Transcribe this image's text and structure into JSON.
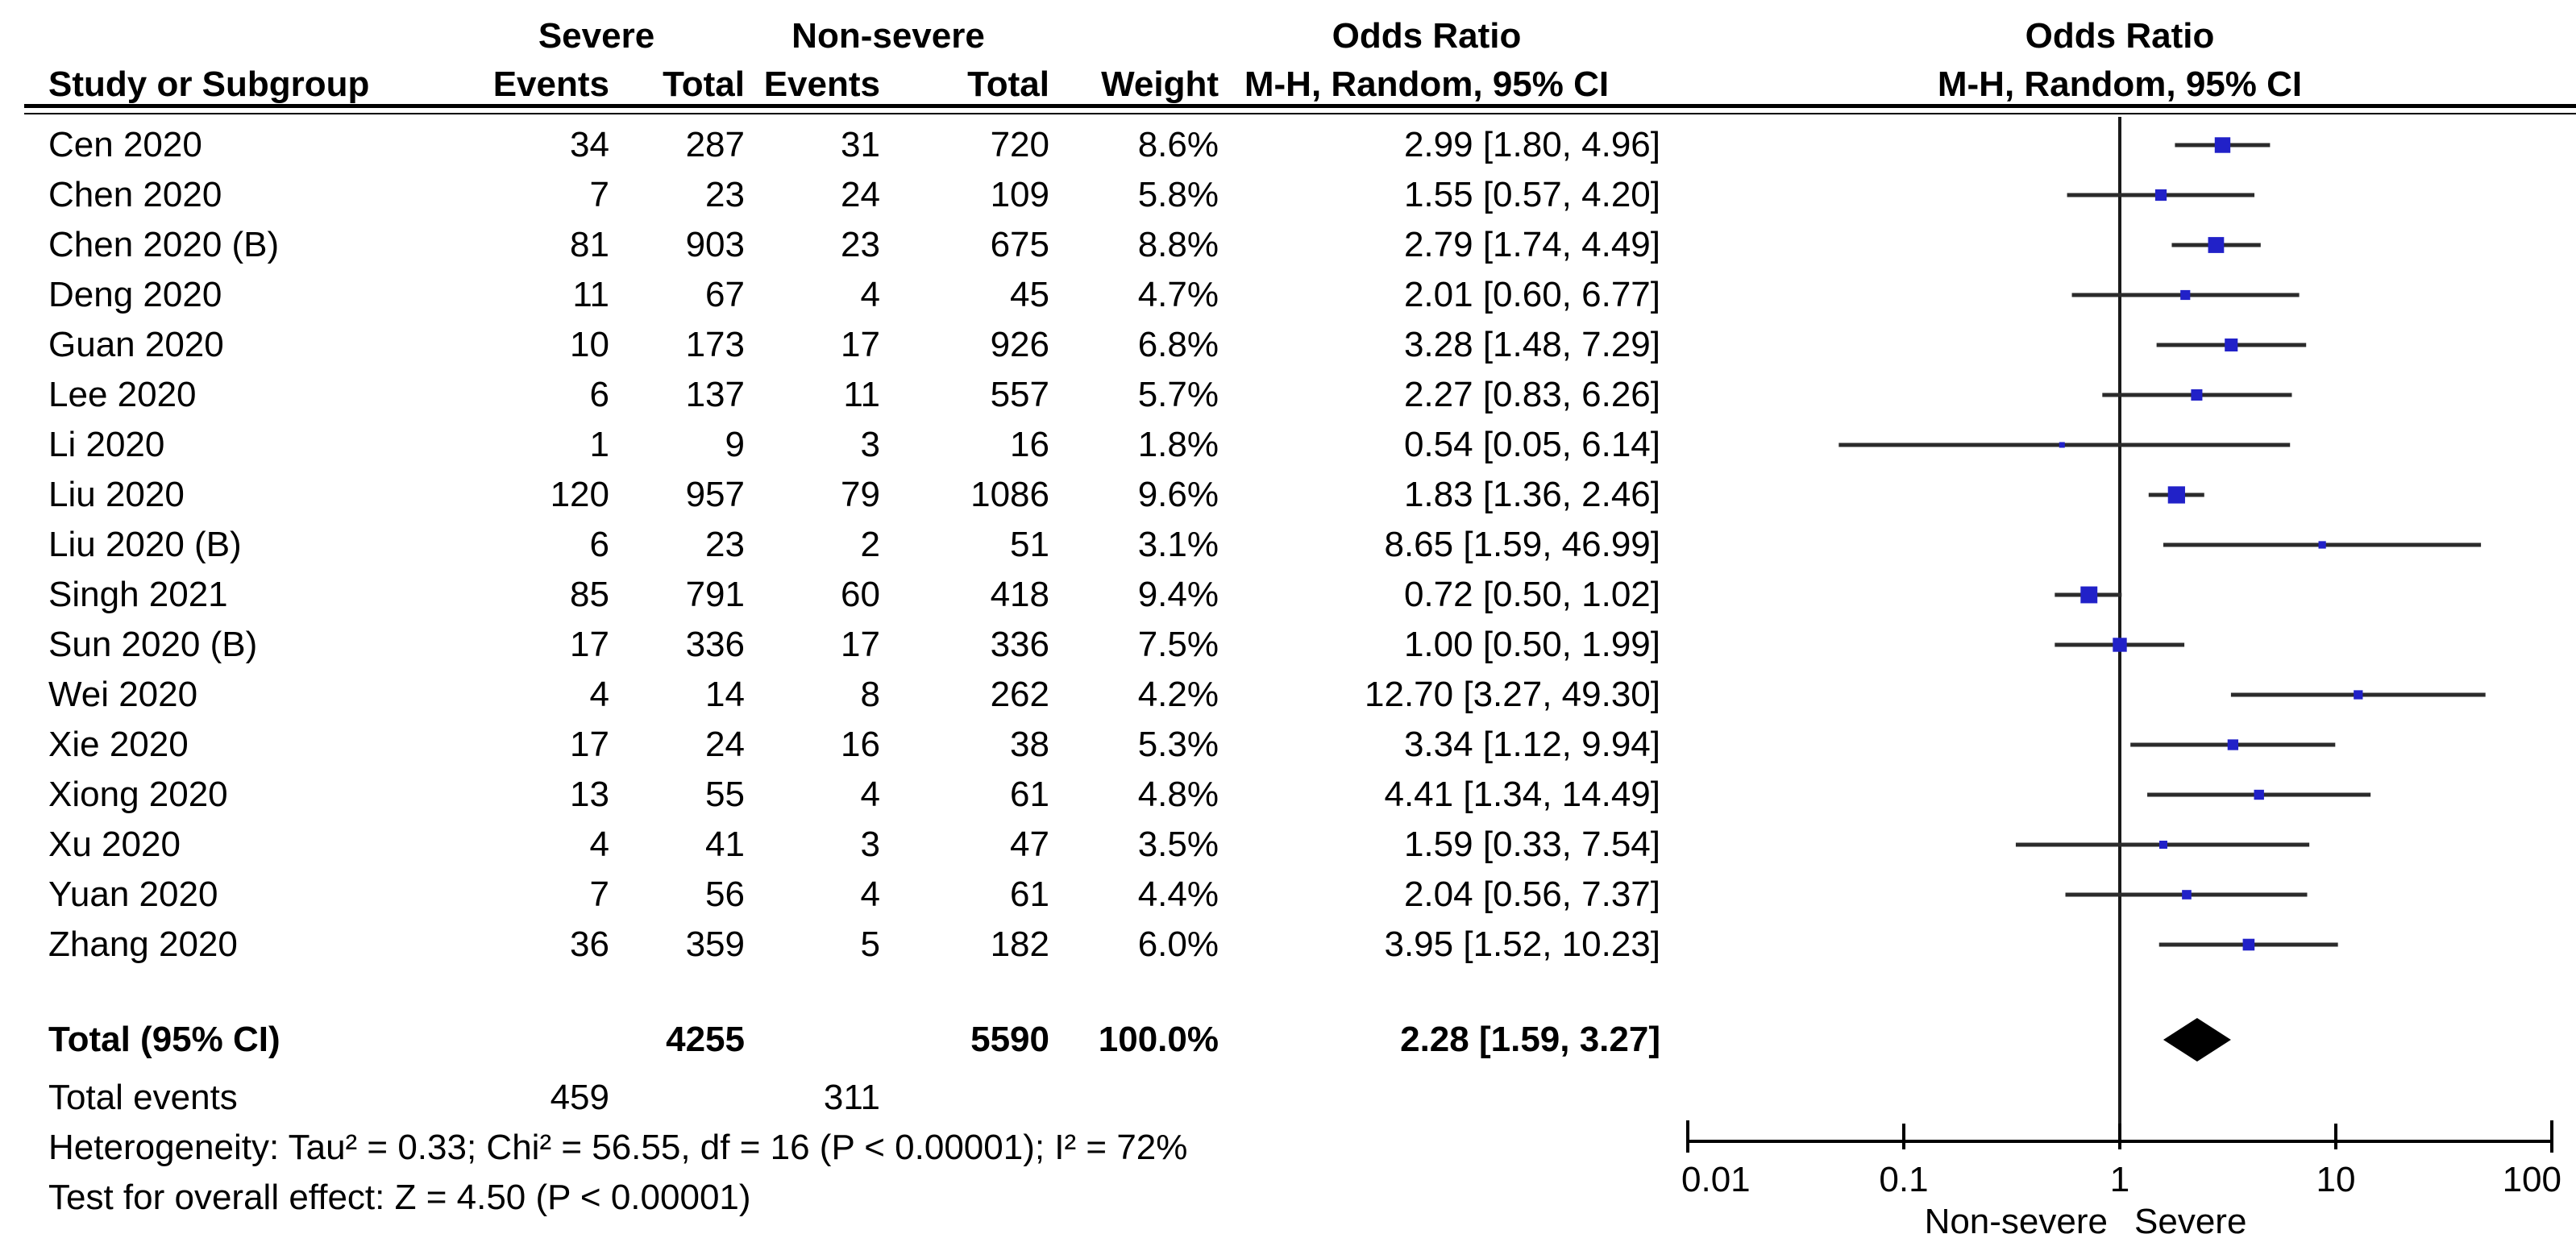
{
  "colors": {
    "marker_blue": "#2121C8",
    "ci_line": "#2b2b2b",
    "null_line": "#1a1a1a",
    "axis": "#000000",
    "diamond": "#000000",
    "text": "#000000"
  },
  "header": {
    "group_severe": "Severe",
    "group_nonsevere": "Non-severe",
    "study": "Study or Subgroup",
    "severe_events": "Events",
    "severe_total": "Total",
    "nonsevere_events": "Events",
    "nonsevere_total": "Total",
    "weight": "Weight",
    "or_title": "Odds Ratio",
    "or_subtitle": "M-H, Random, 95% CI",
    "plot_or_title": "Odds Ratio",
    "plot_or_subtitle": "M-H, Random, 95% CI"
  },
  "chart_data": {
    "type": "forest",
    "effect_measure": "Odds Ratio, M-H Random effects, 95% CI",
    "x_scale": "log",
    "x_range": [
      0.01,
      100
    ],
    "x_ticks": [
      {
        "value": 0.01,
        "label": "0.01"
      },
      {
        "value": 0.1,
        "label": "0.1"
      },
      {
        "value": 1,
        "label": "1"
      },
      {
        "value": 10,
        "label": "10"
      },
      {
        "value": 100,
        "label": "100"
      }
    ],
    "x_axis_left_label": "Non-severe",
    "x_axis_right_label": "Severe",
    "studies": [
      {
        "name": "Cen 2020",
        "severe_events": 34,
        "severe_total": 287,
        "nonsevere_events": 31,
        "nonsevere_total": 720,
        "weight": 8.6,
        "weight_label": "8.6%",
        "or": 2.99,
        "ci_low": 1.8,
        "ci_high": 4.96,
        "or_label": "2.99 [1.80, 4.96]"
      },
      {
        "name": "Chen 2020",
        "severe_events": 7,
        "severe_total": 23,
        "nonsevere_events": 24,
        "nonsevere_total": 109,
        "weight": 5.8,
        "weight_label": "5.8%",
        "or": 1.55,
        "ci_low": 0.57,
        "ci_high": 4.2,
        "or_label": "1.55 [0.57, 4.20]"
      },
      {
        "name": "Chen 2020 (B)",
        "severe_events": 81,
        "severe_total": 903,
        "nonsevere_events": 23,
        "nonsevere_total": 675,
        "weight": 8.8,
        "weight_label": "8.8%",
        "or": 2.79,
        "ci_low": 1.74,
        "ci_high": 4.49,
        "or_label": "2.79 [1.74, 4.49]"
      },
      {
        "name": "Deng 2020",
        "severe_events": 11,
        "severe_total": 67,
        "nonsevere_events": 4,
        "nonsevere_total": 45,
        "weight": 4.7,
        "weight_label": "4.7%",
        "or": 2.01,
        "ci_low": 0.6,
        "ci_high": 6.77,
        "or_label": "2.01 [0.60, 6.77]"
      },
      {
        "name": "Guan 2020",
        "severe_events": 10,
        "severe_total": 173,
        "nonsevere_events": 17,
        "nonsevere_total": 926,
        "weight": 6.8,
        "weight_label": "6.8%",
        "or": 3.28,
        "ci_low": 1.48,
        "ci_high": 7.29,
        "or_label": "3.28 [1.48, 7.29]"
      },
      {
        "name": "Lee 2020",
        "severe_events": 6,
        "severe_total": 137,
        "nonsevere_events": 11,
        "nonsevere_total": 557,
        "weight": 5.7,
        "weight_label": "5.7%",
        "or": 2.27,
        "ci_low": 0.83,
        "ci_high": 6.26,
        "or_label": "2.27 [0.83, 6.26]"
      },
      {
        "name": "Li 2020",
        "severe_events": 1,
        "severe_total": 9,
        "nonsevere_events": 3,
        "nonsevere_total": 16,
        "weight": 1.8,
        "weight_label": "1.8%",
        "or": 0.54,
        "ci_low": 0.05,
        "ci_high": 6.14,
        "or_label": "0.54 [0.05, 6.14]"
      },
      {
        "name": "Liu 2020",
        "severe_events": 120,
        "severe_total": 957,
        "nonsevere_events": 79,
        "nonsevere_total": 1086,
        "weight": 9.6,
        "weight_label": "9.6%",
        "or": 1.83,
        "ci_low": 1.36,
        "ci_high": 2.46,
        "or_label": "1.83 [1.36, 2.46]"
      },
      {
        "name": "Liu 2020 (B)",
        "severe_events": 6,
        "severe_total": 23,
        "nonsevere_events": 2,
        "nonsevere_total": 51,
        "weight": 3.1,
        "weight_label": "3.1%",
        "or": 8.65,
        "ci_low": 1.59,
        "ci_high": 46.99,
        "or_label": "8.65 [1.59, 46.99]"
      },
      {
        "name": "Singh 2021",
        "severe_events": 85,
        "severe_total": 791,
        "nonsevere_events": 60,
        "nonsevere_total": 418,
        "weight": 9.4,
        "weight_label": "9.4%",
        "or": 0.72,
        "ci_low": 0.5,
        "ci_high": 1.02,
        "or_label": "0.72 [0.50, 1.02]"
      },
      {
        "name": "Sun 2020 (B)",
        "severe_events": 17,
        "severe_total": 336,
        "nonsevere_events": 17,
        "nonsevere_total": 336,
        "weight": 7.5,
        "weight_label": "7.5%",
        "or": 1.0,
        "ci_low": 0.5,
        "ci_high": 1.99,
        "or_label": "1.00 [0.50, 1.99]"
      },
      {
        "name": "Wei 2020",
        "severe_events": 4,
        "severe_total": 14,
        "nonsevere_events": 8,
        "nonsevere_total": 262,
        "weight": 4.2,
        "weight_label": "4.2%",
        "or": 12.7,
        "ci_low": 3.27,
        "ci_high": 49.3,
        "or_label": "12.70 [3.27, 49.30]"
      },
      {
        "name": "Xie 2020",
        "severe_events": 17,
        "severe_total": 24,
        "nonsevere_events": 16,
        "nonsevere_total": 38,
        "weight": 5.3,
        "weight_label": "5.3%",
        "or": 3.34,
        "ci_low": 1.12,
        "ci_high": 9.94,
        "or_label": "3.34 [1.12, 9.94]"
      },
      {
        "name": "Xiong 2020",
        "severe_events": 13,
        "severe_total": 55,
        "nonsevere_events": 4,
        "nonsevere_total": 61,
        "weight": 4.8,
        "weight_label": "4.8%",
        "or": 4.41,
        "ci_low": 1.34,
        "ci_high": 14.49,
        "or_label": "4.41 [1.34, 14.49]"
      },
      {
        "name": "Xu 2020",
        "severe_events": 4,
        "severe_total": 41,
        "nonsevere_events": 3,
        "nonsevere_total": 47,
        "weight": 3.5,
        "weight_label": "3.5%",
        "or": 1.59,
        "ci_low": 0.33,
        "ci_high": 7.54,
        "or_label": "1.59 [0.33, 7.54]"
      },
      {
        "name": "Yuan 2020",
        "severe_events": 7,
        "severe_total": 56,
        "nonsevere_events": 4,
        "nonsevere_total": 61,
        "weight": 4.4,
        "weight_label": "4.4%",
        "or": 2.04,
        "ci_low": 0.56,
        "ci_high": 7.37,
        "or_label": "2.04 [0.56, 7.37]"
      },
      {
        "name": "Zhang 2020",
        "severe_events": 36,
        "severe_total": 359,
        "nonsevere_events": 5,
        "nonsevere_total": 182,
        "weight": 6.0,
        "weight_label": "6.0%",
        "or": 3.95,
        "ci_low": 1.52,
        "ci_high": 10.23,
        "or_label": "3.95 [1.52, 10.23]"
      }
    ],
    "summary": {
      "label": "Total (95% CI)",
      "severe_total": 4255,
      "nonsevere_total": 5590,
      "weight_label": "100.0%",
      "or": 2.28,
      "ci_low": 1.59,
      "ci_high": 3.27,
      "or_label": "2.28 [1.59, 3.27]",
      "total_events_label": "Total events",
      "severe_events": 459,
      "nonsevere_events": 311,
      "heterogeneity": "Heterogeneity: Tau² = 0.33; Chi² = 56.55, df = 16 (P < 0.00001); I² = 72%",
      "overall_effect": "Test for overall effect: Z = 4.50 (P < 0.00001)"
    }
  }
}
